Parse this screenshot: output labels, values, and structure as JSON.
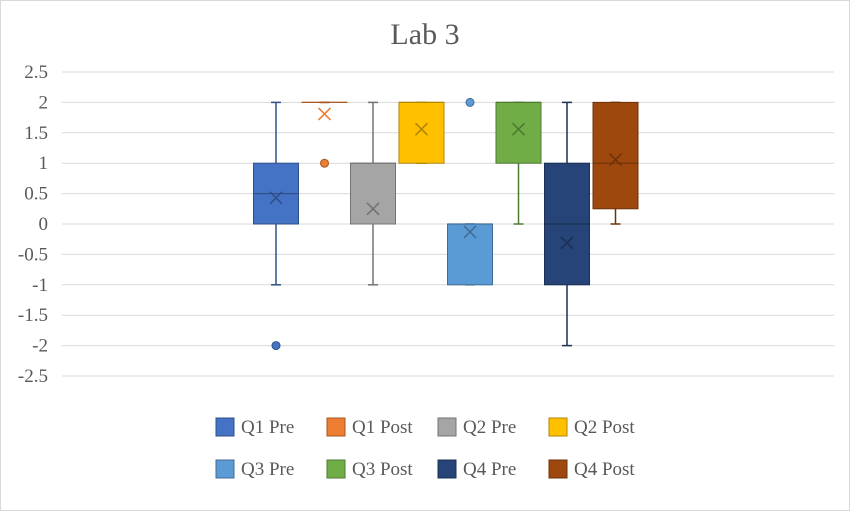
{
  "chart_data": {
    "type": "box",
    "title": "Lab 3",
    "xlabel": "",
    "ylabel": "",
    "ylim": [
      -2.5,
      2.5
    ],
    "yticks": [
      "2.5",
      "2",
      "1.5",
      "1",
      "0.5",
      "0",
      "-0.5",
      "-1",
      "-1.5",
      "-2",
      "-2.5"
    ],
    "ytick_values": [
      2.5,
      2,
      1.5,
      1,
      0.5,
      0,
      -0.5,
      -1,
      -1.5,
      -2,
      -2.5
    ],
    "grid": true,
    "legend_position": "bottom",
    "series": [
      {
        "name": "Q1 Pre",
        "color": "#4472C4",
        "whisker_low": -1,
        "q1": 0,
        "median": 0.5,
        "q3": 1,
        "whisker_high": 2,
        "mean": 0.43,
        "outliers": [
          -2
        ]
      },
      {
        "name": "Q1 Post",
        "color": "#ED7D31",
        "whisker_low": 2,
        "q1": 2,
        "median": 2,
        "q3": 2,
        "whisker_high": 2,
        "mean": 1.81,
        "outliers": [
          1
        ]
      },
      {
        "name": "Q2 Pre",
        "color": "#A5A5A5",
        "whisker_low": -1,
        "q1": 0,
        "median": 1,
        "q3": 1,
        "whisker_high": 2,
        "mean": 0.25,
        "outliers": []
      },
      {
        "name": "Q2 Post",
        "color": "#FFC000",
        "whisker_low": 1,
        "q1": 1,
        "median": 2,
        "q3": 2,
        "whisker_high": 2,
        "mean": 1.56,
        "outliers": []
      },
      {
        "name": "Q3 Pre",
        "color": "#5B9BD5",
        "whisker_low": -1,
        "q1": -1,
        "median": 0,
        "q3": 0,
        "whisker_high": 0,
        "mean": -0.13,
        "outliers": [
          2
        ]
      },
      {
        "name": "Q3 Post",
        "color": "#70AD47",
        "whisker_low": 0,
        "q1": 1,
        "median": 2,
        "q3": 2,
        "whisker_high": 2,
        "mean": 1.56,
        "outliers": []
      },
      {
        "name": "Q4 Pre",
        "color": "#264478",
        "whisker_low": -2,
        "q1": -1,
        "median": 0,
        "q3": 1,
        "whisker_high": 2,
        "mean": -0.31,
        "outliers": []
      },
      {
        "name": "Q4 Post",
        "color": "#9E480E",
        "whisker_low": 0,
        "q1": 0.25,
        "median": 1,
        "q3": 2,
        "whisker_high": 2,
        "mean": 1.06,
        "outliers": []
      }
    ]
  }
}
